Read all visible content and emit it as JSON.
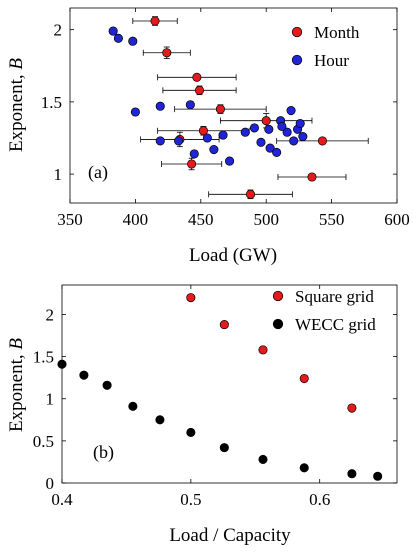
{
  "chart_data": [
    {
      "panel_tag": "(a)",
      "type": "scatter",
      "xlabel": "Load (GW)",
      "ylabel_prefix": "Exponent, ",
      "ylabel_var": "B",
      "xlim": [
        350,
        600
      ],
      "ylim": [
        0.8,
        2.15
      ],
      "xticks": [
        350,
        400,
        450,
        500,
        550,
        600
      ],
      "yticks": [
        1,
        1.5,
        2
      ],
      "grid": false,
      "legend_position": "top-right",
      "series": [
        {
          "name": "Month",
          "color": "#e41a1c",
          "points": [
            {
              "x": 415,
              "y": 2.06,
              "xerr": 17,
              "yerr": 0.03
            },
            {
              "x": 424,
              "y": 1.84,
              "xerr": 18,
              "yerr": 0.04
            },
            {
              "x": 447,
              "y": 1.67,
              "xerr": 30,
              "yerr": 0.02
            },
            {
              "x": 449,
              "y": 1.58,
              "xerr": 28,
              "yerr": 0.03
            },
            {
              "x": 465,
              "y": 1.45,
              "xerr": 35,
              "yerr": 0.03
            },
            {
              "x": 500,
              "y": 1.37,
              "xerr": 35,
              "yerr": 0.05
            },
            {
              "x": 452,
              "y": 1.3,
              "xerr": 35,
              "yerr": 0.03
            },
            {
              "x": 434,
              "y": 1.24,
              "xerr": 30,
              "yerr": 0.05
            },
            {
              "x": 543,
              "y": 1.23,
              "xerr": 35,
              "yerr": 0.02
            },
            {
              "x": 443,
              "y": 1.07,
              "xerr": 23,
              "yerr": 0.04
            },
            {
              "x": 535,
              "y": 0.98,
              "xerr": 26,
              "yerr": 0.02
            },
            {
              "x": 488,
              "y": 0.86,
              "xerr": 32,
              "yerr": 0.03
            }
          ]
        },
        {
          "name": "Hour",
          "color": "#1f24d6",
          "points": [
            {
              "x": 383,
              "y": 1.99
            },
            {
              "x": 387,
              "y": 1.94
            },
            {
              "x": 398,
              "y": 1.92
            },
            {
              "x": 400,
              "y": 1.43
            },
            {
              "x": 419,
              "y": 1.47
            },
            {
              "x": 442,
              "y": 1.48
            },
            {
              "x": 419,
              "y": 1.23
            },
            {
              "x": 433,
              "y": 1.23
            },
            {
              "x": 445,
              "y": 1.14
            },
            {
              "x": 455,
              "y": 1.25
            },
            {
              "x": 460,
              "y": 1.17
            },
            {
              "x": 467,
              "y": 1.27
            },
            {
              "x": 472,
              "y": 1.09
            },
            {
              "x": 484,
              "y": 1.29
            },
            {
              "x": 491,
              "y": 1.32
            },
            {
              "x": 496,
              "y": 1.22
            },
            {
              "x": 502,
              "y": 1.31
            },
            {
              "x": 503,
              "y": 1.18
            },
            {
              "x": 508,
              "y": 1.15
            },
            {
              "x": 511,
              "y": 1.37
            },
            {
              "x": 516,
              "y": 1.29
            },
            {
              "x": 519,
              "y": 1.44
            },
            {
              "x": 521,
              "y": 1.23
            },
            {
              "x": 524,
              "y": 1.31
            },
            {
              "x": 526,
              "y": 1.35
            },
            {
              "x": 528,
              "y": 1.26
            },
            {
              "x": 512,
              "y": 1.33
            }
          ]
        }
      ]
    },
    {
      "panel_tag": "(b)",
      "type": "scatter",
      "xlabel": "Load / Capacity",
      "ylabel_prefix": "Exponent, ",
      "ylabel_var": "B",
      "xlim": [
        0.4,
        0.66
      ],
      "ylim": [
        0,
        2.35
      ],
      "xticks": [
        0.4,
        0.5,
        0.6
      ],
      "yticks": [
        0,
        0.5,
        1,
        1.5,
        2
      ],
      "grid": false,
      "legend_position": "top-right",
      "series": [
        {
          "name": "Square grid",
          "color": "#e41a1c",
          "points": [
            {
              "x": 0.5,
              "y": 2.2
            },
            {
              "x": 0.526,
              "y": 1.88
            },
            {
              "x": 0.556,
              "y": 1.58
            },
            {
              "x": 0.588,
              "y": 1.24
            },
            {
              "x": 0.625,
              "y": 0.89
            }
          ]
        },
        {
          "name": "WECC grid",
          "color": "#000000",
          "points": [
            {
              "x": 0.4,
              "y": 1.41
            },
            {
              "x": 0.417,
              "y": 1.28
            },
            {
              "x": 0.435,
              "y": 1.16
            },
            {
              "x": 0.455,
              "y": 0.91
            },
            {
              "x": 0.476,
              "y": 0.75
            },
            {
              "x": 0.5,
              "y": 0.6
            },
            {
              "x": 0.526,
              "y": 0.42
            },
            {
              "x": 0.556,
              "y": 0.28
            },
            {
              "x": 0.588,
              "y": 0.18
            },
            {
              "x": 0.625,
              "y": 0.11
            },
            {
              "x": 0.645,
              "y": 0.08
            }
          ]
        }
      ]
    }
  ]
}
